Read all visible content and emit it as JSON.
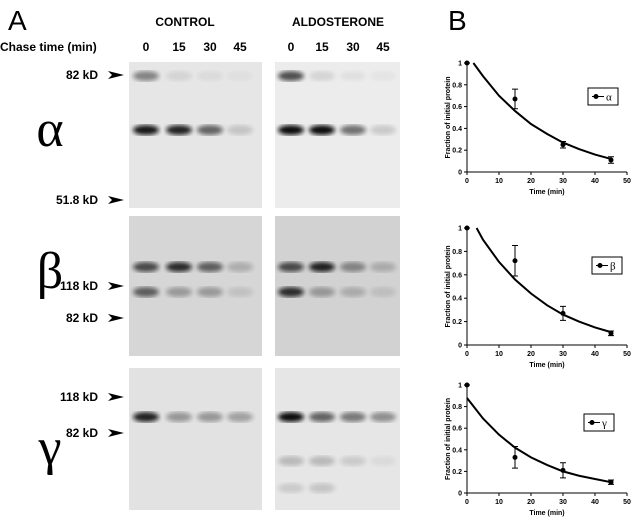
{
  "panel_a": {
    "label": "A",
    "chase_time_label": "Chase time (min)",
    "groups": [
      {
        "name": "CONTROL",
        "lanes": [
          "0",
          "15",
          "30",
          "45"
        ]
      },
      {
        "name": "ALDOSTERONE",
        "lanes": [
          "0",
          "15",
          "30",
          "45"
        ]
      }
    ],
    "blots": [
      {
        "symbol": "α",
        "markers": [
          "82 kD",
          "51.8 kD"
        ]
      },
      {
        "symbol": "β",
        "markers": [
          "118 kD",
          "82 kD"
        ]
      },
      {
        "symbol": "γ",
        "markers": [
          "118 kD",
          "82 kD"
        ]
      }
    ]
  },
  "panel_b_label": "B",
  "chart_data": [
    {
      "type": "scatter",
      "xlabel": "Time (min)",
      "ylabel": "Fraction of initial protein",
      "xlim": [
        0,
        50
      ],
      "ylim": [
        0,
        1
      ],
      "xticks": [
        0,
        10,
        20,
        30,
        40,
        50
      ],
      "yticks": [
        0,
        0.2,
        0.4,
        0.6,
        0.8,
        1
      ],
      "legend": "upper right",
      "series": [
        {
          "name": "α",
          "color": "#000000",
          "x": [
            0,
            15,
            30,
            45
          ],
          "values": [
            1,
            0.67,
            0.25,
            0.11
          ],
          "errors": [
            0,
            0.09,
            0.03,
            0.03
          ]
        }
      ],
      "fit": {
        "color": "#000000",
        "x": [
          2,
          5,
          10,
          15,
          20,
          25,
          30,
          35,
          40,
          45
        ],
        "values": [
          1,
          0.88,
          0.7,
          0.56,
          0.44,
          0.35,
          0.27,
          0.21,
          0.16,
          0.12
        ]
      }
    },
    {
      "type": "scatter",
      "xlabel": "Time (min)",
      "ylabel": "Fraction of initial protein",
      "xlim": [
        0,
        50
      ],
      "ylim": [
        0,
        1
      ],
      "xticks": [
        0,
        10,
        20,
        30,
        40,
        50
      ],
      "yticks": [
        0,
        0.2,
        0.4,
        0.6,
        0.8,
        1
      ],
      "legend": "upper right",
      "series": [
        {
          "name": "β",
          "color": "#000000",
          "x": [
            0,
            15,
            30,
            45
          ],
          "values": [
            1,
            0.72,
            0.27,
            0.1
          ],
          "errors": [
            0,
            0.13,
            0.06,
            0.02
          ]
        }
      ],
      "fit": {
        "color": "#000000",
        "x": [
          3,
          5,
          10,
          15,
          20,
          25,
          30,
          35,
          40,
          45
        ],
        "values": [
          1,
          0.9,
          0.71,
          0.56,
          0.44,
          0.34,
          0.26,
          0.2,
          0.15,
          0.11
        ]
      }
    },
    {
      "type": "scatter",
      "xlabel": "Time (min)",
      "ylabel": "Fraction of initial protein",
      "xlim": [
        0,
        50
      ],
      "ylim": [
        0,
        1
      ],
      "xticks": [
        0,
        10,
        20,
        30,
        40,
        50
      ],
      "yticks": [
        0,
        0.2,
        0.4,
        0.6,
        0.8,
        1
      ],
      "legend": "upper right",
      "series": [
        {
          "name": "γ",
          "color": "#000000",
          "x": [
            0,
            15,
            30,
            45
          ],
          "values": [
            1,
            0.33,
            0.21,
            0.1
          ],
          "errors": [
            0,
            0.1,
            0.07,
            0.02
          ]
        }
      ],
      "fit": {
        "color": "#000000",
        "x": [
          0,
          5,
          10,
          15,
          20,
          25,
          30,
          35,
          40,
          45
        ],
        "values": [
          0.88,
          0.69,
          0.54,
          0.42,
          0.33,
          0.26,
          0.2,
          0.16,
          0.13,
          0.1
        ]
      }
    }
  ]
}
